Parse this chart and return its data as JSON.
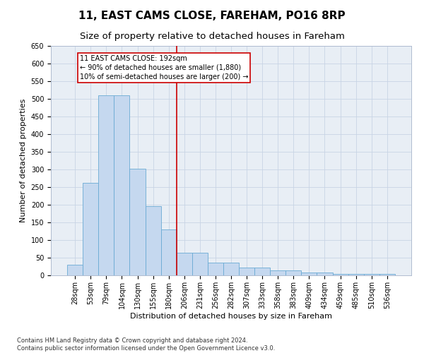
{
  "title": "11, EAST CAMS CLOSE, FAREHAM, PO16 8RP",
  "subtitle": "Size of property relative to detached houses in Fareham",
  "xlabel": "Distribution of detached houses by size in Fareham",
  "ylabel": "Number of detached properties",
  "categories": [
    "28sqm",
    "53sqm",
    "79sqm",
    "104sqm",
    "130sqm",
    "155sqm",
    "180sqm",
    "206sqm",
    "231sqm",
    "256sqm",
    "282sqm",
    "307sqm",
    "333sqm",
    "358sqm",
    "383sqm",
    "409sqm",
    "434sqm",
    "459sqm",
    "485sqm",
    "510sqm",
    "536sqm"
  ],
  "values": [
    30,
    263,
    511,
    510,
    302,
    196,
    131,
    65,
    65,
    37,
    37,
    22,
    22,
    15,
    15,
    8,
    8,
    5,
    5,
    5,
    5
  ],
  "bar_color": "#c5d8ef",
  "bar_edge_color": "#6aaad4",
  "vline_x_index": 6.5,
  "vline_color": "#cc0000",
  "annotation_text": "11 EAST CAMS CLOSE: 192sqm\n← 90% of detached houses are smaller (1,880)\n10% of semi-detached houses are larger (200) →",
  "annotation_box_color": "#cc0000",
  "ylim": [
    0,
    650
  ],
  "yticks": [
    0,
    50,
    100,
    150,
    200,
    250,
    300,
    350,
    400,
    450,
    500,
    550,
    600,
    650
  ],
  "footer1": "Contains HM Land Registry data © Crown copyright and database right 2024.",
  "footer2": "Contains public sector information licensed under the Open Government Licence v3.0.",
  "title_fontsize": 11,
  "subtitle_fontsize": 9.5,
  "label_fontsize": 8,
  "tick_fontsize": 7,
  "annotation_fontsize": 7,
  "footer_fontsize": 6,
  "background_color": "#ffffff",
  "ax_background_color": "#e8eef5",
  "grid_color": "#c8d4e5"
}
